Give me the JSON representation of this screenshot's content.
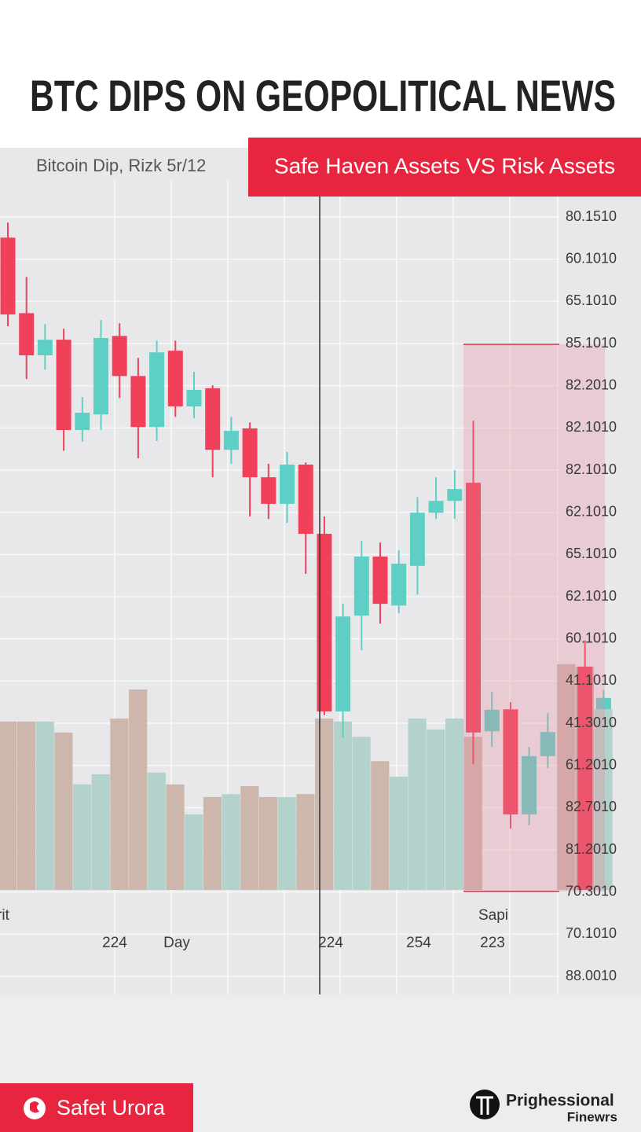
{
  "chart_data": {
    "type": "candlestick",
    "title": "BTC DIPS ON GEOPOLITICAL NEWS",
    "subtitle": "Bitcoin Dip, Rizk 5r/12",
    "banner": "Safe Haven Assets VS Risk Assets",
    "button": "Safet Urora",
    "brand": [
      "Prighessional",
      "Finewrs"
    ],
    "x_labels": [
      "rit",
      "224",
      "Day",
      "224",
      "254",
      "223",
      "Sapi"
    ],
    "ylim": [
      0,
      18
    ],
    "yticks": [
      {
        "value": 18,
        "label": "80.1510"
      },
      {
        "value": 17,
        "label": "60.1010"
      },
      {
        "value": 16,
        "label": "65.1010"
      },
      {
        "value": 15,
        "label": "85.1010"
      },
      {
        "value": 14,
        "label": "82.2010"
      },
      {
        "value": 13,
        "label": "82.1010"
      },
      {
        "value": 12,
        "label": "82.1010"
      },
      {
        "value": 11,
        "label": "62.1010"
      },
      {
        "value": 10,
        "label": "65.1010"
      },
      {
        "value": 9,
        "label": "62.1010"
      },
      {
        "value": 8,
        "label": "60.1010"
      },
      {
        "value": 7,
        "label": "41.1010"
      },
      {
        "value": 6,
        "label": "41.3010"
      },
      {
        "value": 5,
        "label": "61.2010"
      },
      {
        "value": 4,
        "label": "82.7010"
      },
      {
        "value": 3,
        "label": "81.2010"
      },
      {
        "value": 2,
        "label": "70.3010"
      },
      {
        "value": 1,
        "label": "70.1010"
      },
      {
        "value": 0,
        "label": "88.0010"
      }
    ],
    "grid": true,
    "up_color": "#5ecfc4",
    "down_color": "#f0405a",
    "ohlc": [
      [
        17.51,
        17.87,
        15.41,
        15.69
      ],
      [
        15.72,
        16.58,
        14.16,
        14.72
      ],
      [
        14.72,
        15.46,
        14.38,
        15.09
      ],
      [
        15.09,
        15.35,
        12.46,
        12.95
      ],
      [
        12.95,
        13.73,
        12.67,
        13.36
      ],
      [
        13.32,
        15.56,
        12.95,
        15.13
      ],
      [
        15.18,
        15.48,
        13.71,
        14.23
      ],
      [
        14.23,
        14.66,
        12.28,
        13.02
      ],
      [
        13.02,
        15.07,
        12.69,
        14.79
      ],
      [
        14.83,
        15.07,
        13.26,
        13.51
      ],
      [
        13.51,
        14.33,
        13.23,
        13.9
      ],
      [
        13.94,
        14.01,
        11.83,
        12.48
      ],
      [
        12.48,
        13.26,
        12.15,
        12.93
      ],
      [
        12.99,
        13.13,
        10.9,
        11.83
      ],
      [
        11.83,
        12.15,
        10.84,
        11.2
      ],
      [
        11.2,
        12.43,
        10.75,
        12.13
      ],
      [
        12.13,
        12.18,
        9.54,
        10.49
      ],
      [
        10.49,
        10.9,
        6.19,
        6.28
      ],
      [
        6.28,
        8.83,
        5.66,
        8.53
      ],
      [
        8.55,
        10.32,
        7.73,
        9.95
      ],
      [
        9.95,
        10.28,
        8.36,
        8.83
      ],
      [
        8.79,
        10.1,
        8.61,
        9.78
      ],
      [
        9.73,
        11.36,
        9.05,
        10.99
      ],
      [
        10.99,
        11.83,
        10.84,
        11.27
      ],
      [
        11.27,
        12.0,
        10.84,
        11.55
      ],
      [
        11.7,
        13.17,
        5.03,
        5.78
      ],
      [
        5.81,
        6.74,
        5.44,
        6.32
      ],
      [
        6.33,
        6.5,
        3.5,
        3.84
      ],
      [
        3.84,
        5.44,
        3.58,
        5.22
      ],
      [
        5.22,
        6.24,
        4.94,
        5.79
      ],
      null,
      [
        7.34,
        7.96,
        2.05,
        2.05
      ],
      [
        6.33,
        6.78,
        6.33,
        6.6
      ]
    ],
    "volume": [
      6.04,
      6.04,
      6.04,
      5.78,
      4.55,
      4.79,
      6.11,
      6.8,
      4.83,
      4.55,
      3.84,
      4.25,
      4.32,
      4.51,
      4.25,
      4.25,
      4.32,
      6.11,
      6.04,
      5.68,
      5.1,
      4.73,
      6.11,
      5.85,
      6.11,
      5.68,
      null,
      null,
      null,
      null,
      7.4,
      7.34,
      6.33
    ]
  }
}
